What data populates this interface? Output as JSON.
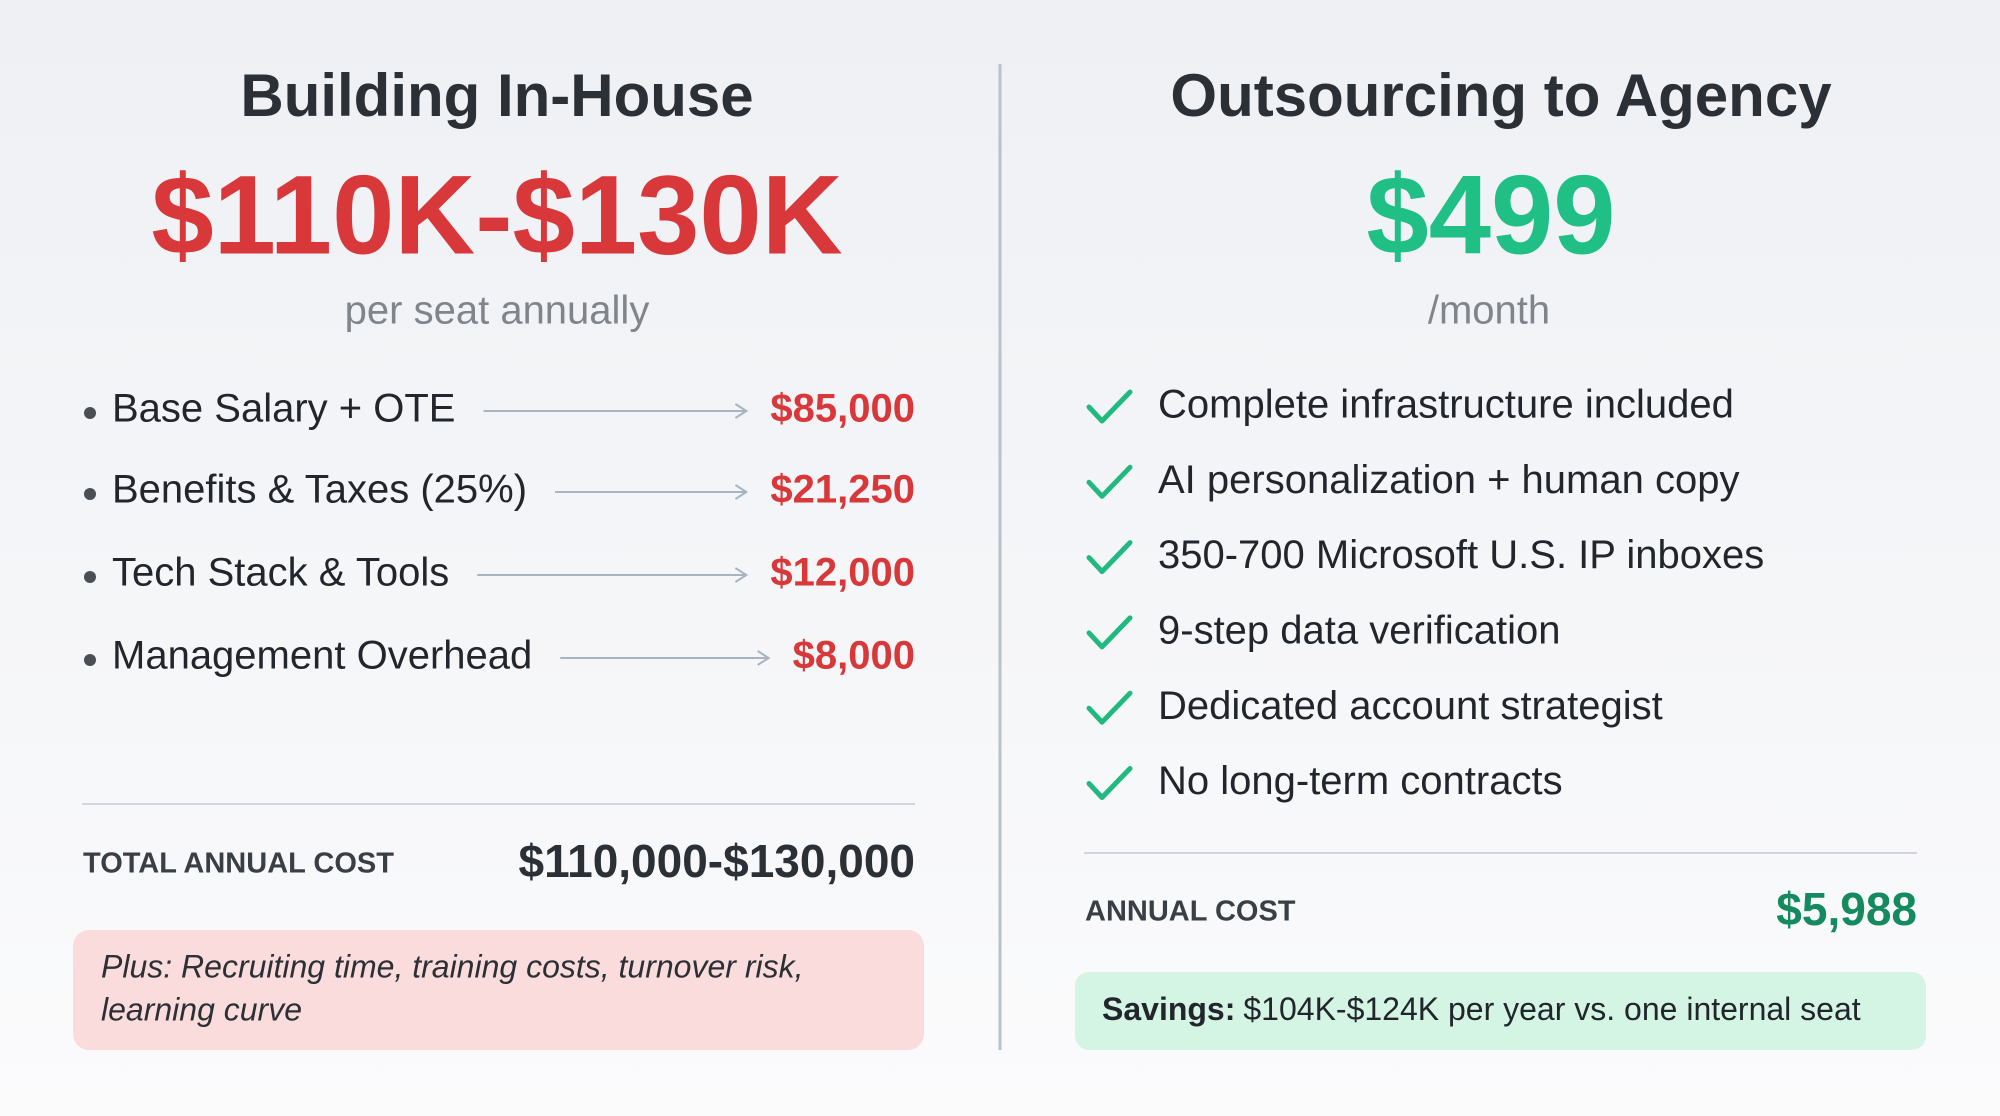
{
  "left": {
    "title": "Building In-House",
    "price": "$110K-$130K",
    "price_note": "per seat annually",
    "items": [
      {
        "label": "Base Salary + OTE",
        "value": "$85,000"
      },
      {
        "label": "Benefits & Taxes (25%)",
        "value": "$21,250"
      },
      {
        "label": "Tech Stack & Tools",
        "value": "$12,000"
      },
      {
        "label": "Management Overhead",
        "value": "$8,000"
      }
    ],
    "total_label": "TOTAL ANNUAL COST",
    "total_value": "$110,000-$130,000",
    "note": [
      "Plus: Recruiting time, training costs, turnover risk,",
      "learning curve"
    ]
  },
  "right": {
    "title": "Outsourcing to Agency",
    "price": "$499",
    "price_note": "/month",
    "features": [
      "Complete infrastructure included",
      "AI personalization + human copy",
      "350-700 Microsoft U.S. IP inboxes",
      "9-step data verification",
      "Dedicated account strategist",
      "No long-term contracts"
    ],
    "total_label": "ANNUAL COST",
    "total_value": "$5,988",
    "savings_label": "Savings:",
    "savings_text": "$104K-$124K per year vs. one internal seat"
  }
}
